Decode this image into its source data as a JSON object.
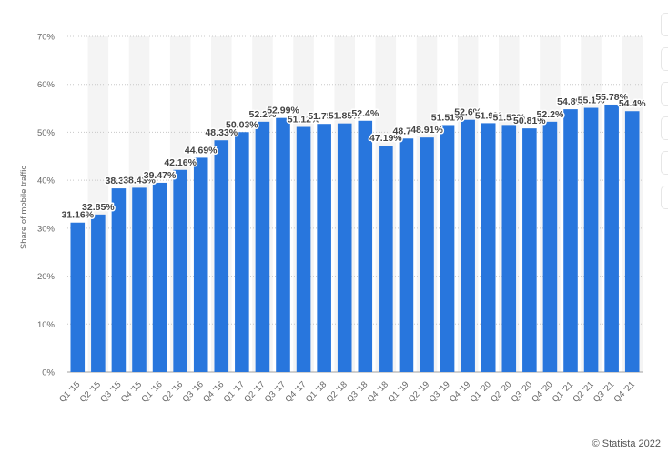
{
  "chart_data": {
    "type": "bar",
    "categories": [
      "Q1 '15",
      "Q2 '15",
      "Q3 '15",
      "Q4 '15",
      "Q1 '16",
      "Q2 '16",
      "Q3 '16",
      "Q4 '16",
      "Q1 '17",
      "Q2 '17",
      "Q3 '17",
      "Q4 '17",
      "Q1 '18",
      "Q2 '18",
      "Q3 '18",
      "Q4 '18",
      "Q1 '19",
      "Q2 '19",
      "Q3 '19",
      "Q4 '19",
      "Q1 '20",
      "Q2 '20",
      "Q3 '20",
      "Q4 '20",
      "Q1 '21",
      "Q2 '21",
      "Q3 '21",
      "Q4 '21"
    ],
    "values": [
      31.16,
      32.85,
      38.3,
      38.43,
      39.47,
      42.16,
      44.69,
      48.33,
      50.03,
      52.2,
      52.99,
      51.12,
      51.75,
      51.85,
      52.4,
      47.19,
      48.7,
      48.91,
      51.51,
      52.6,
      51.9,
      51.53,
      50.81,
      52.2,
      54.8,
      55.1,
      55.78,
      54.4
    ],
    "labels": [
      "31.16%",
      "32.85%",
      "38.3%",
      "38.43%",
      "39.47%",
      "42.16%",
      "44.69%",
      "48.33%",
      "50.03%",
      "52.2%",
      "52.99%",
      "51.12%",
      "51.75%",
      "51.85%",
      "52.4%",
      "47.19%",
      "48.7%",
      "48.91%",
      "51.51%",
      "52.6%",
      "51.9%",
      "51.53%",
      "50.81%",
      "52.2%",
      "54.8%",
      "55.1%",
      "55.78%",
      "54.4%"
    ],
    "ylabel": "Share of mobile traffic",
    "ylim": [
      0,
      70
    ],
    "yticks": [
      "0%",
      "10%",
      "20%",
      "30%",
      "40%",
      "50%",
      "60%",
      "70%"
    ],
    "grid": true,
    "bar_color": "#2876dd"
  },
  "credit": "© Statista 2022"
}
